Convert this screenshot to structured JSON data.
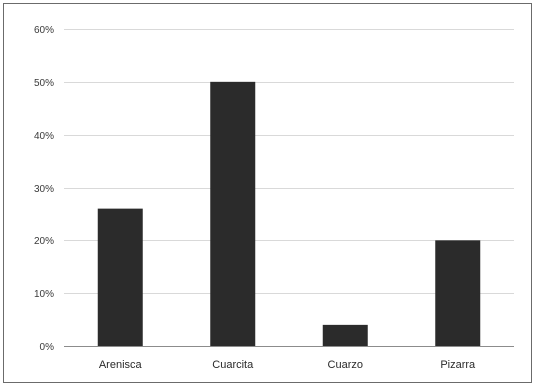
{
  "chart_data": {
    "type": "bar",
    "title": "",
    "xlabel": "",
    "ylabel": "",
    "categories": [
      "Arenisca",
      "Cuarcita",
      "Cuarzo",
      "Pizarra"
    ],
    "values": [
      26,
      50,
      4,
      20
    ],
    "ylim": [
      0,
      60
    ],
    "yticks": [
      0,
      10,
      20,
      30,
      40,
      50,
      60
    ],
    "ytick_labels": [
      "0%",
      "10%",
      "20%",
      "30%",
      "40%",
      "50%",
      "60%"
    ],
    "grid": true,
    "legend": "none",
    "bar_color": "#2b2b2b"
  }
}
